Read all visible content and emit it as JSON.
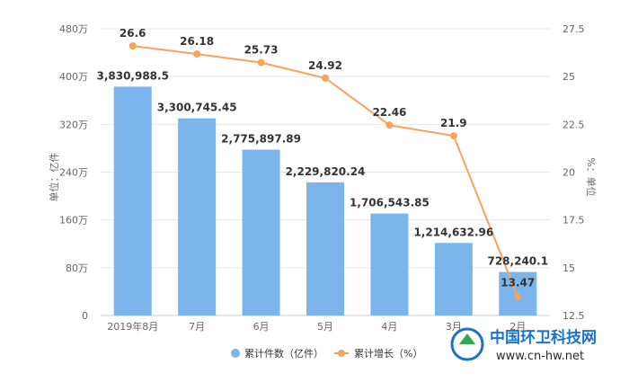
{
  "chart_data": {
    "type": "bar",
    "categories": [
      "2019年8月",
      "7月",
      "6月",
      "5月",
      "4月",
      "3月",
      "2月"
    ],
    "series": [
      {
        "name": "累计件数（亿件）",
        "type": "bar",
        "axis": "left",
        "values": [
          3830988.5,
          3300745.45,
          2775897.89,
          2229820.24,
          1706543.85,
          1214632.96,
          728240.1
        ],
        "labels": [
          "3,830,988.5",
          "3,300,745.45",
          "2,775,897.89",
          "2,229,820.24",
          "1,706,543.85",
          "1,214,632.96",
          "728,240.1"
        ],
        "color": "#7cb5ec"
      },
      {
        "name": "累计增长（%）",
        "type": "line",
        "axis": "right",
        "values": [
          26.6,
          26.18,
          25.73,
          24.92,
          22.46,
          21.9,
          13.47
        ],
        "labels": [
          "26.6",
          "26.18",
          "25.73",
          "24.92",
          "22.46",
          "21.9",
          "13.47"
        ],
        "color": "#f7a35c"
      }
    ],
    "y_left": {
      "label": "单位：亿件",
      "ylim": [
        0,
        4800000
      ],
      "ticks": [
        0,
        800000,
        1600000,
        2400000,
        3200000,
        4000000,
        4800000
      ],
      "tick_labels": [
        "0",
        "80万",
        "160万",
        "240万",
        "320万",
        "400万",
        "480万"
      ]
    },
    "y_right": {
      "label": "%：单位",
      "ylim": [
        12.5,
        27.5
      ],
      "ticks": [
        12.5,
        15,
        17.5,
        20,
        22.5,
        25,
        27.5
      ],
      "tick_labels": [
        "12.5",
        "15",
        "17.5",
        "20",
        "22.5",
        "25",
        "27.5"
      ]
    },
    "grid": true,
    "legend_position": "bottom-center"
  },
  "watermark": {
    "title": "中国环卫科技网",
    "url": "www.cn-hw.net",
    "color": "#1a73c8"
  }
}
